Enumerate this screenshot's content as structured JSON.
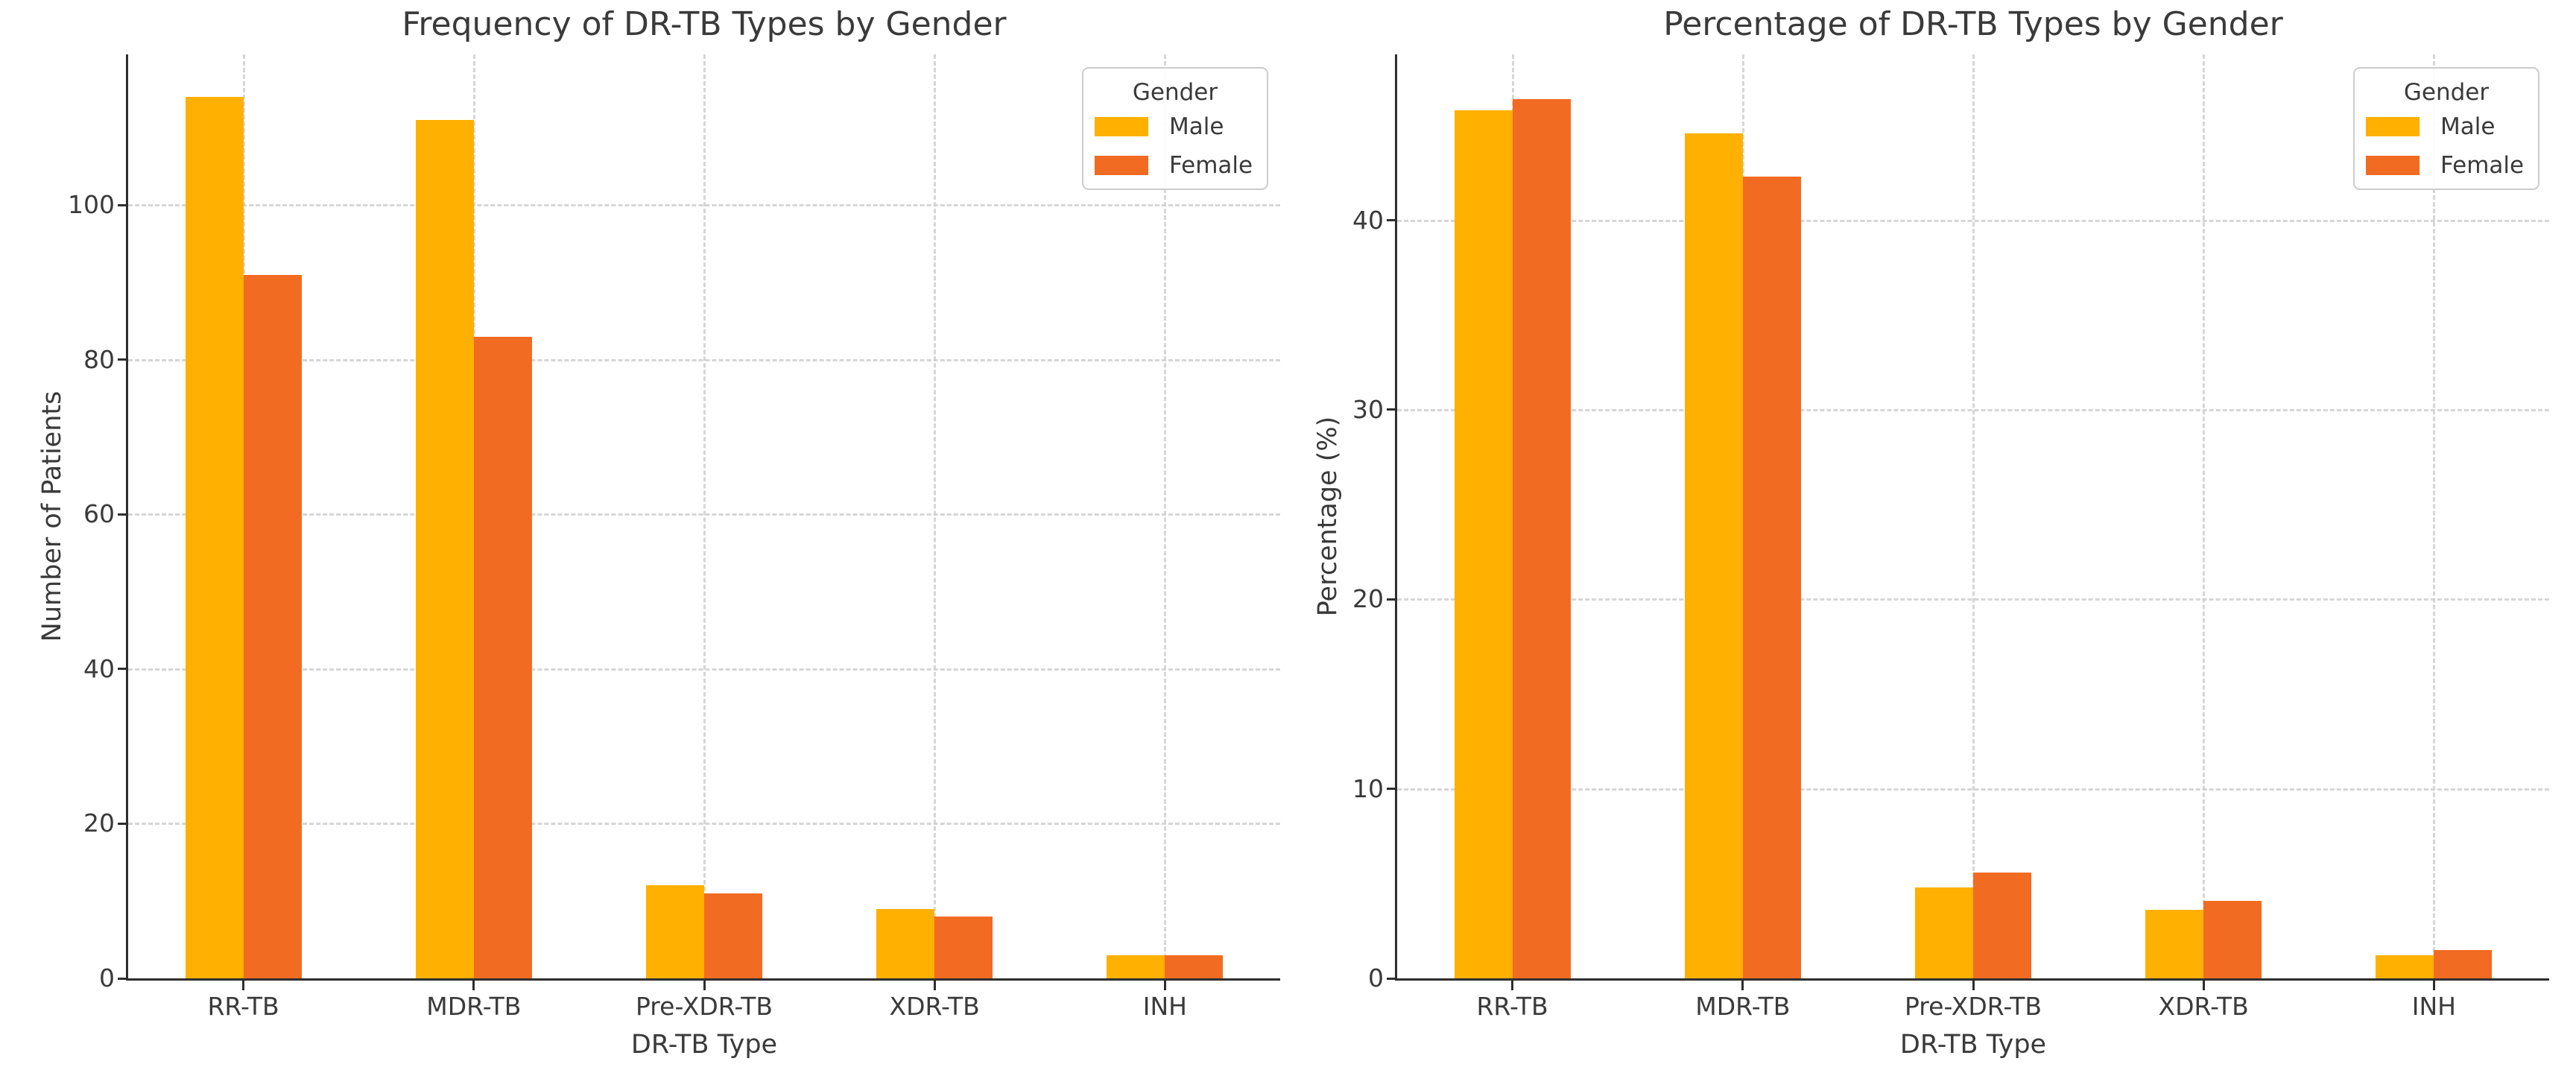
{
  "figure": {
    "background": "#FFFFFF"
  },
  "palette": {
    "male": "#FFB000",
    "female": "#F26B22",
    "grid": "#CFCFCF",
    "axis": "#2E2E2E",
    "text": "#3A3A3A",
    "legend_border": "#CCCCCC"
  },
  "chart_data": [
    {
      "type": "bar",
      "title": "Frequency of DR-TB Types by Gender",
      "xlabel": "DR-TB Type",
      "ylabel": "Number of Patients",
      "categories": [
        "RR-TB",
        "MDR-TB",
        "Pre-XDR-TB",
        "XDR-TB",
        "INH"
      ],
      "series": [
        {
          "name": "Male",
          "color": "#FFB000",
          "values": [
            114,
            111,
            12,
            9,
            3
          ]
        },
        {
          "name": "Female",
          "color": "#F26B22",
          "values": [
            91,
            83,
            11,
            8,
            3
          ]
        }
      ],
      "legend": {
        "title": "Gender",
        "position": "upper right"
      },
      "yticks": [
        0,
        20,
        40,
        60,
        80,
        100
      ],
      "ylim": [
        0,
        119.5
      ],
      "grid": "dashed, both axes"
    },
    {
      "type": "bar",
      "title": "Percentage of DR-TB Types by Gender",
      "xlabel": "DR-TB Type",
      "ylabel": "Percentage (%)",
      "categories": [
        "RR-TB",
        "MDR-TB",
        "Pre-XDR-TB",
        "XDR-TB",
        "INH"
      ],
      "series": [
        {
          "name": "Male",
          "color": "#FFB000",
          "values": [
            45.8,
            44.6,
            4.8,
            3.6,
            1.2
          ]
        },
        {
          "name": "Female",
          "color": "#F26B22",
          "values": [
            46.4,
            42.3,
            5.6,
            4.1,
            1.5
          ]
        }
      ],
      "legend": {
        "title": "Gender",
        "position": "upper right"
      },
      "yticks": [
        0,
        10,
        20,
        30,
        40
      ],
      "ylim": [
        0,
        48.75
      ],
      "grid": "dashed, both axes"
    }
  ]
}
